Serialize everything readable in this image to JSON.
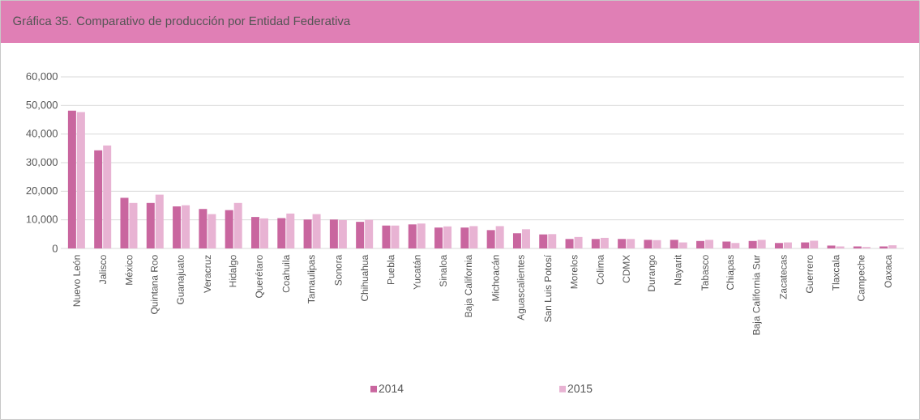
{
  "chart_data": {
    "type": "bar",
    "title": "Gráfica 35. Comparativo de producción por Entidad Federativa",
    "categories": [
      "Nuevo León",
      "Jalisco",
      "México",
      "Quintana Roo",
      "Guanajuato",
      "Veracruz",
      "Hidalgo",
      "Querétaro",
      "Coahuila",
      "Tamaulipas",
      "Sonora",
      "Chihuahua",
      "Puebla",
      "Yucatán",
      "Sinaloa",
      "Baja California",
      "Michoacán",
      "Aguascalientes",
      "San Luis Potosí",
      "Morelos",
      "Colima",
      "CDMX",
      "Durango",
      "Nayarit",
      "Tabasco",
      "Chiapas",
      "Baja California Sur",
      "Zacatecas",
      "Guerrero",
      "Tlaxcala",
      "Campeche",
      "Oaxaca"
    ],
    "series": [
      {
        "name": "2014",
        "color": "#c9669f",
        "values": [
          48200,
          34300,
          17700,
          15900,
          14700,
          13800,
          13400,
          11000,
          10600,
          10100,
          10100,
          9300,
          8000,
          8400,
          7300,
          7300,
          6400,
          5300,
          4900,
          3300,
          3300,
          3300,
          3000,
          3000,
          2600,
          2400,
          2600,
          1900,
          2100,
          1000,
          700,
          700
        ]
      },
      {
        "name": "2015",
        "color": "#e8b3d3",
        "values": [
          47700,
          36000,
          15900,
          18800,
          15100,
          12000,
          15900,
          10500,
          12200,
          12000,
          9900,
          10000,
          8000,
          8700,
          7700,
          7800,
          7800,
          6700,
          5000,
          4000,
          3700,
          3300,
          2900,
          2100,
          3000,
          1900,
          3000,
          2100,
          2700,
          700,
          500,
          1100
        ]
      }
    ],
    "ylim": [
      0,
      60000
    ],
    "yticks": [
      0,
      {
        "value": 10000,
        "label": "10,000"
      },
      {
        "value": 20000,
        "label": "20,000"
      },
      {
        "value": 30000,
        "label": "30,000"
      },
      {
        "value": 40000,
        "label": "40,000"
      },
      {
        "value": 50000,
        "label": "50,000"
      },
      {
        "value": 60000,
        "label": "60,000"
      }
    ],
    "grid": "y",
    "legend": "bottom"
  }
}
